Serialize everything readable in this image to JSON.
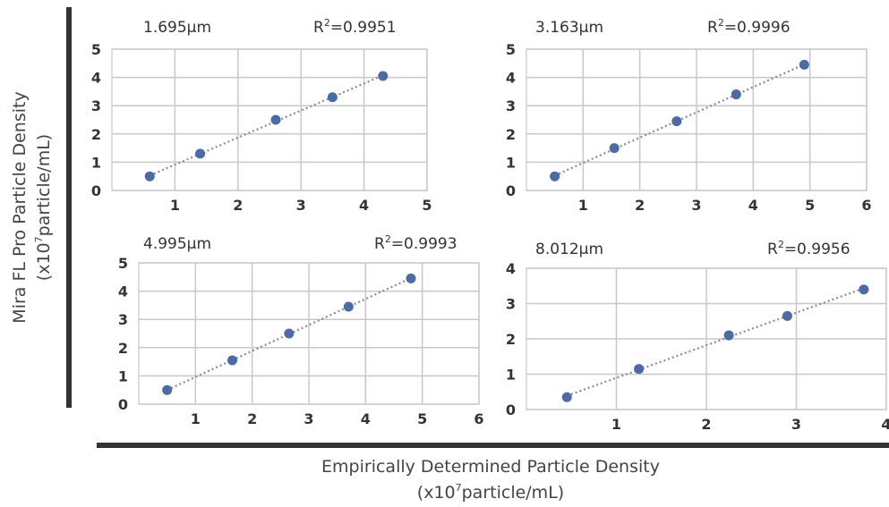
{
  "y_axis_label": {
    "line1": "Mira FL Pro  Particle Density",
    "line2_pre": "(x10",
    "line2_sup": "7",
    "line2_post": "particle/mL)"
  },
  "x_axis_label": {
    "line1": "Empirically Determined Particle Density",
    "line2_pre": "(x10",
    "line2_sup": "7",
    "line2_post": "particle/mL)"
  },
  "colors": {
    "point": "#4a6aa8",
    "trend": "#8a8a9a",
    "grid": "#c8c8c8",
    "axis_bar": "#333333"
  },
  "chart_data": [
    {
      "type": "scatter",
      "size_label": "1.695μm",
      "r2_pre": "R",
      "r2_sup": "2",
      "r2_post": "=0.9951",
      "xlim": [
        0,
        5
      ],
      "ylim": [
        0,
        5
      ],
      "xticks": [
        "1",
        "2",
        "3",
        "4",
        "5"
      ],
      "yticks": [
        "0",
        "1",
        "2",
        "3",
        "4",
        "5"
      ],
      "x": [
        0.6,
        1.4,
        2.6,
        3.5,
        4.3
      ],
      "y": [
        0.5,
        1.3,
        2.5,
        3.3,
        4.05
      ],
      "trendline": true,
      "grid": true
    },
    {
      "type": "scatter",
      "size_label": "3.163μm",
      "r2_pre": "R",
      "r2_sup": "2",
      "r2_post": "=0.9996",
      "xlim": [
        0,
        6
      ],
      "ylim": [
        0,
        5
      ],
      "xticks": [
        "1",
        "2",
        "3",
        "4",
        "5",
        "6"
      ],
      "yticks": [
        "0",
        "1",
        "2",
        "3",
        "4",
        "5"
      ],
      "x": [
        0.5,
        1.55,
        2.65,
        3.7,
        4.9
      ],
      "y": [
        0.5,
        1.5,
        2.45,
        3.4,
        4.45
      ],
      "trendline": true,
      "grid": true
    },
    {
      "type": "scatter",
      "size_label": "4.995μm",
      "r2_pre": "R",
      "r2_sup": "2",
      "r2_post": "=0.9993",
      "xlim": [
        0,
        6
      ],
      "ylim": [
        0,
        5
      ],
      "xticks": [
        "1",
        "2",
        "3",
        "4",
        "5",
        "6"
      ],
      "yticks": [
        "0",
        "1",
        "2",
        "3",
        "4",
        "5"
      ],
      "x": [
        0.5,
        1.65,
        2.65,
        3.7,
        4.8
      ],
      "y": [
        0.5,
        1.55,
        2.5,
        3.45,
        4.45
      ],
      "trendline": true,
      "grid": true
    },
    {
      "type": "scatter",
      "size_label": "8.012μm",
      "r2_pre": "R",
      "r2_sup": "2",
      "r2_post": "=0.9956",
      "xlim": [
        0,
        4
      ],
      "ylim": [
        0,
        4
      ],
      "xticks": [
        "1",
        "2",
        "3",
        "4"
      ],
      "yticks": [
        "0",
        "1",
        "2",
        "3",
        "4"
      ],
      "x": [
        0.45,
        1.25,
        2.25,
        2.9,
        3.75
      ],
      "y": [
        0.35,
        1.15,
        2.1,
        2.65,
        3.4
      ],
      "trendline": true,
      "grid": true
    }
  ]
}
